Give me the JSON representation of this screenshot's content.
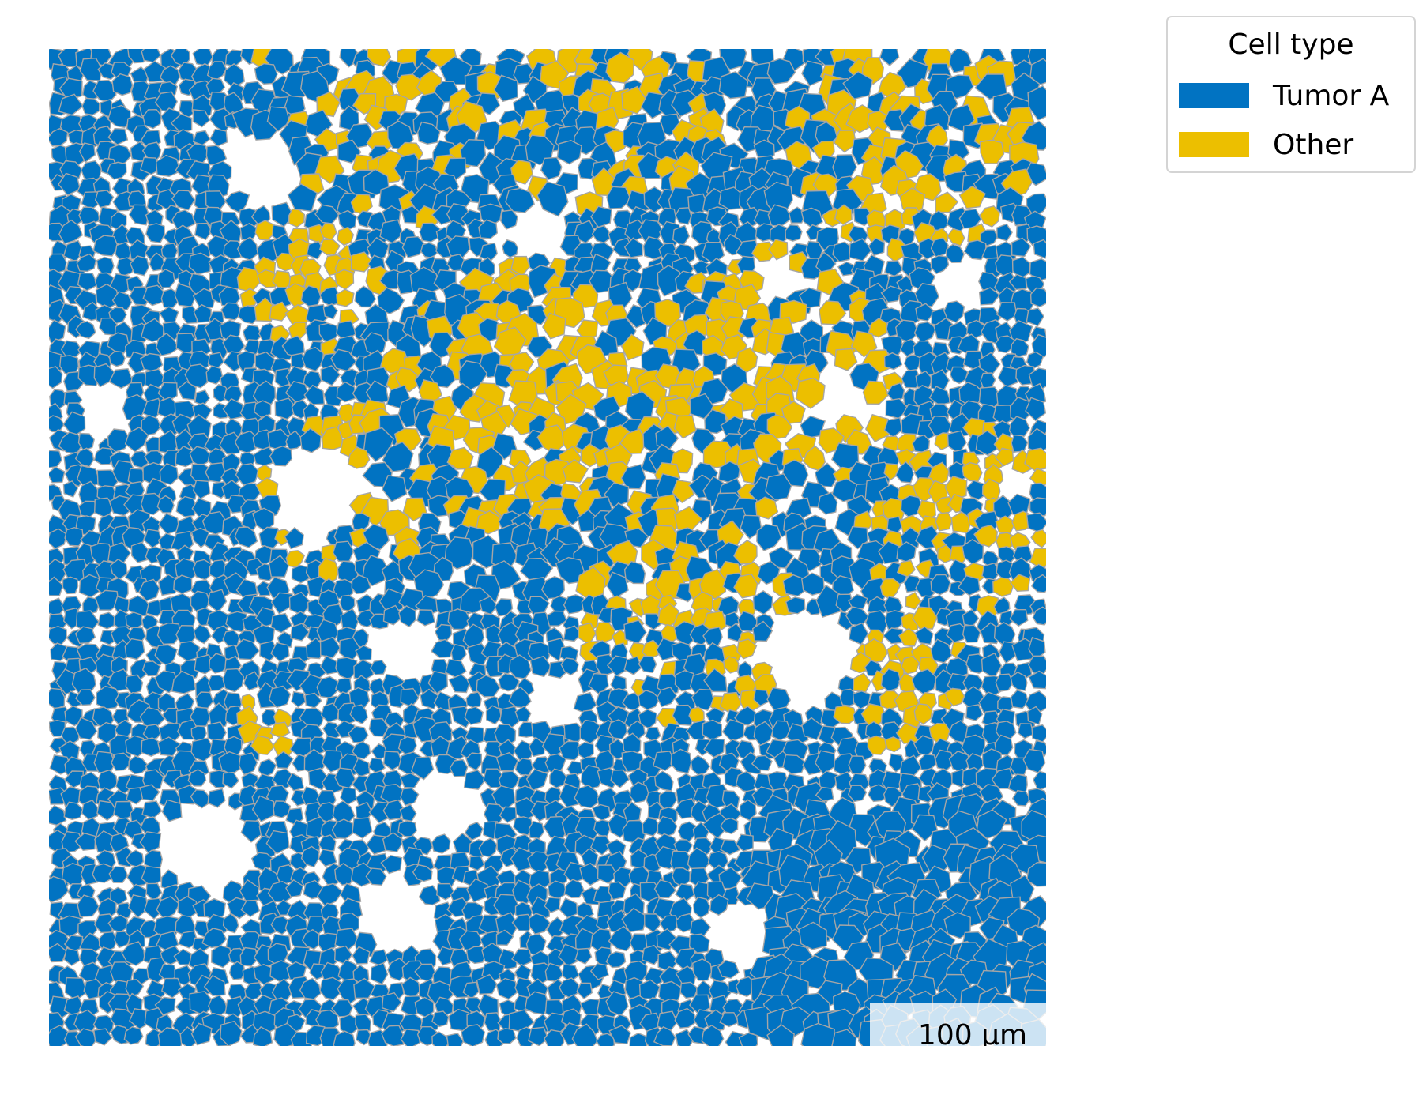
{
  "map": {
    "colors": {
      "tumor_a": "#0173c2",
      "other": "#ecbf00",
      "cell_border": "#a6a6a6",
      "background": "#ffffff"
    },
    "scalebar": {
      "label": "100 µm"
    }
  },
  "legend": {
    "title": "Cell type",
    "items": [
      {
        "label": "Tumor A",
        "color": "#0173c2"
      },
      {
        "label": "Other",
        "color": "#ecbf00"
      }
    ]
  }
}
